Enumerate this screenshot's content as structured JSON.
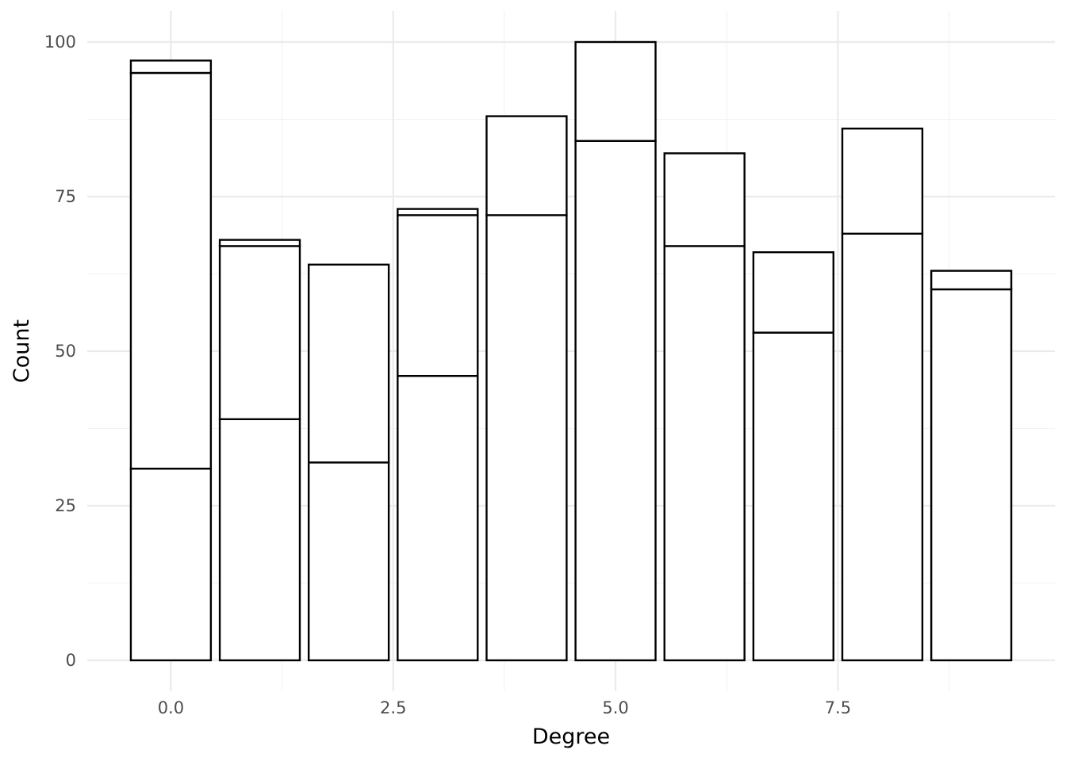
{
  "chart_data": {
    "type": "bar",
    "stacked": true,
    "xlabel": "Degree",
    "ylabel": "Count",
    "x": [
      0,
      1,
      2,
      3,
      4,
      5,
      6,
      7,
      8,
      9
    ],
    "stack_boundaries": [
      [
        31,
        95,
        97
      ],
      [
        39,
        67,
        68
      ],
      [
        32,
        64
      ],
      [
        46,
        72,
        73
      ],
      [
        72,
        88
      ],
      [
        84,
        100
      ],
      [
        67,
        82
      ],
      [
        53,
        66
      ],
      [
        69,
        86
      ],
      [
        60,
        63
      ]
    ],
    "totals": [
      97,
      68,
      64,
      73,
      88,
      100,
      82,
      66,
      86,
      63
    ],
    "xlim": [
      -0.94,
      9.94
    ],
    "ylim": [
      -5,
      105
    ],
    "x_ticks": [
      0.0,
      2.5,
      5.0,
      7.5
    ],
    "x_tick_labels": [
      "0.0",
      "2.5",
      "5.0",
      "7.5"
    ],
    "y_ticks": [
      0,
      25,
      50,
      75,
      100
    ],
    "y_tick_labels": [
      "0",
      "25",
      "50",
      "75",
      "100"
    ],
    "grid": true,
    "bar_fill": "#ffffff",
    "bar_outline": "#000000"
  }
}
